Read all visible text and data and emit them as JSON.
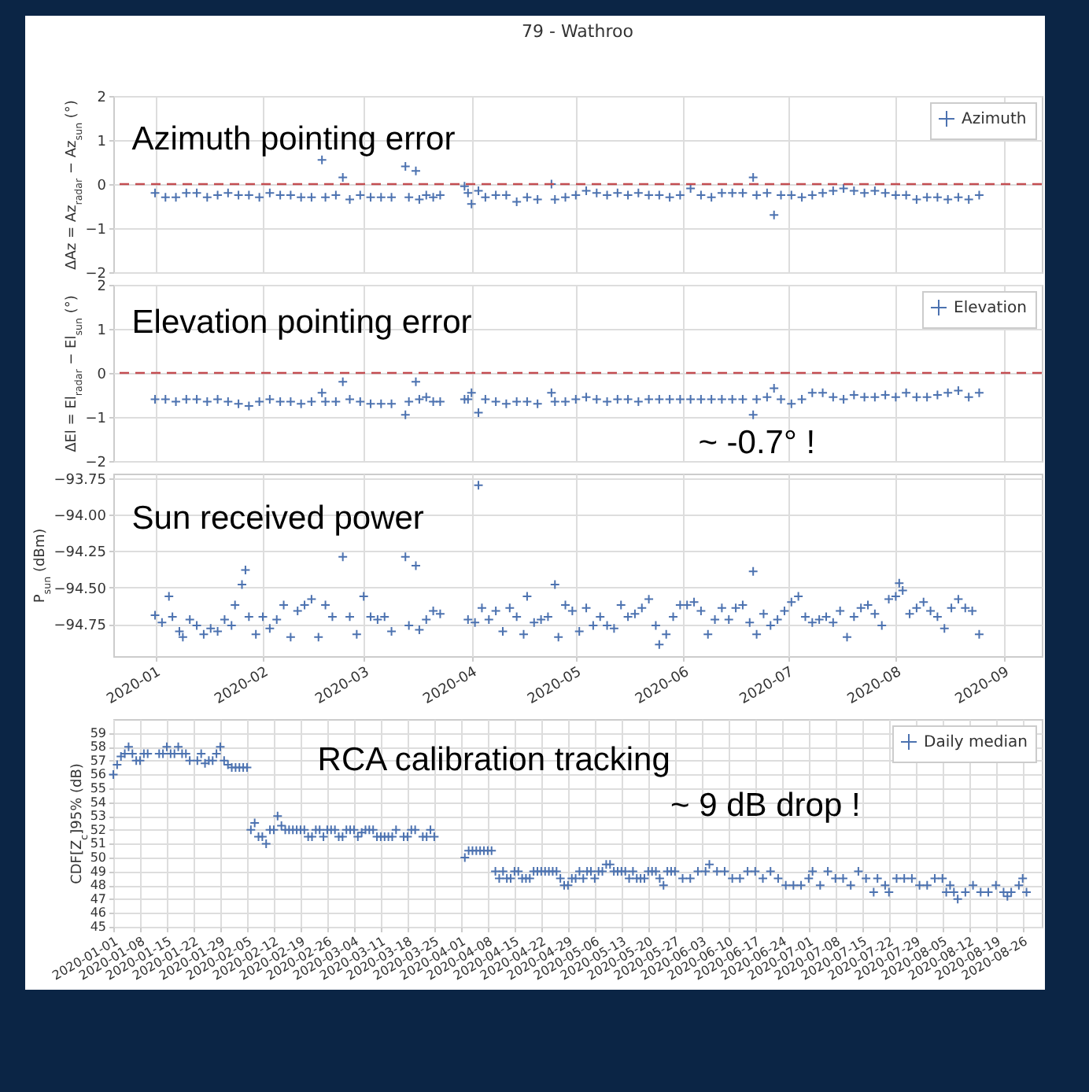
{
  "chart_data": [
    {
      "type": "scatter",
      "title": "79 - Wathroo",
      "ylabel": "ΔAz = Az$_{radar}$ − Az$_{sun}$ (°)",
      "annotations": [
        "Azimuth pointing error"
      ],
      "marker": "cross",
      "grid": true,
      "legend": "top right",
      "tick_labels": "y",
      "xlim": [
        "2019-12-20",
        "2020-09-12"
      ],
      "xticks": [
        "2020-01",
        "2020-02",
        "2020-03",
        "2020-04",
        "2020-05",
        "2020-06",
        "2020-07",
        "2020-08",
        "2020-09"
      ],
      "ylim": [
        -2,
        2
      ],
      "yticks": [
        -2,
        -1,
        0,
        1,
        2
      ],
      "ref_lines": [
        {
          "axis": "y",
          "value": 0,
          "color": "#c44e52",
          "line_style": "dashed"
        }
      ],
      "x": [
        "2020-01-01",
        "2020-01-04",
        "2020-01-07",
        "2020-01-10",
        "2020-01-13",
        "2020-01-16",
        "2020-01-19",
        "2020-01-22",
        "2020-01-25",
        "2020-01-28",
        "2020-01-31",
        "2020-02-03",
        "2020-02-06",
        "2020-02-09",
        "2020-02-12",
        "2020-02-15",
        "2020-02-18",
        "2020-02-19",
        "2020-02-22",
        "2020-02-24",
        "2020-02-26",
        "2020-02-29",
        "2020-03-03",
        "2020-03-06",
        "2020-03-09",
        "2020-03-13",
        "2020-03-14",
        "2020-03-16",
        "2020-03-17",
        "2020-03-19",
        "2020-03-21",
        "2020-03-23",
        "2020-03-30",
        "2020-03-31",
        "2020-04-01",
        "2020-04-03",
        "2020-04-05",
        "2020-04-08",
        "2020-04-11",
        "2020-04-14",
        "2020-04-17",
        "2020-04-20",
        "2020-04-24",
        "2020-04-25",
        "2020-04-28",
        "2020-05-01",
        "2020-05-04",
        "2020-05-07",
        "2020-05-10",
        "2020-05-13",
        "2020-05-16",
        "2020-05-19",
        "2020-05-22",
        "2020-05-25",
        "2020-05-28",
        "2020-05-31",
        "2020-06-03",
        "2020-06-06",
        "2020-06-09",
        "2020-06-12",
        "2020-06-15",
        "2020-06-18",
        "2020-06-21",
        "2020-06-22",
        "2020-06-25",
        "2020-06-27",
        "2020-06-29",
        "2020-07-02",
        "2020-07-05",
        "2020-07-08",
        "2020-07-11",
        "2020-07-14",
        "2020-07-17",
        "2020-07-20",
        "2020-07-23",
        "2020-07-26",
        "2020-07-29",
        "2020-08-01",
        "2020-08-04",
        "2020-08-07",
        "2020-08-10",
        "2020-08-13",
        "2020-08-16",
        "2020-08-19",
        "2020-08-22",
        "2020-08-25"
      ],
      "series": [
        {
          "name": "Azimuth",
          "color": "#4c72b0",
          "values": [
            -0.2,
            -0.3,
            -0.3,
            -0.2,
            -0.2,
            -0.3,
            -0.25,
            -0.2,
            -0.25,
            -0.25,
            -0.3,
            -0.2,
            -0.25,
            -0.25,
            -0.3,
            -0.3,
            0.55,
            -0.3,
            -0.25,
            0.15,
            -0.35,
            -0.25,
            -0.3,
            -0.3,
            -0.3,
            0.4,
            -0.3,
            0.3,
            -0.35,
            -0.25,
            -0.3,
            -0.25,
            -0.05,
            -0.2,
            -0.45,
            -0.15,
            -0.3,
            -0.25,
            -0.25,
            -0.4,
            -0.3,
            -0.35,
            0.0,
            -0.35,
            -0.3,
            -0.25,
            -0.15,
            -0.2,
            -0.25,
            -0.2,
            -0.25,
            -0.2,
            -0.25,
            -0.25,
            -0.3,
            -0.25,
            -0.1,
            -0.25,
            -0.3,
            -0.2,
            -0.2,
            -0.2,
            0.15,
            -0.25,
            -0.2,
            -0.7,
            -0.25,
            -0.25,
            -0.3,
            -0.25,
            -0.2,
            -0.15,
            -0.1,
            -0.15,
            -0.2,
            -0.15,
            -0.2,
            -0.25,
            -0.25,
            -0.35,
            -0.3,
            -0.3,
            -0.35,
            -0.3,
            -0.35,
            -0.25
          ]
        }
      ]
    },
    {
      "type": "scatter",
      "ylabel": "ΔEl = El$_{radar}$ − El$_{sun}$ (°)",
      "annotations": [
        "Elevation pointing error",
        "~ -0.7° !"
      ],
      "marker": "cross",
      "grid": true,
      "legend": "top right",
      "tick_labels": "y",
      "xlim": [
        "2019-12-20",
        "2020-09-12"
      ],
      "xticks": [
        "2020-01",
        "2020-02",
        "2020-03",
        "2020-04",
        "2020-05",
        "2020-06",
        "2020-07",
        "2020-08",
        "2020-09"
      ],
      "ylim": [
        -2,
        2
      ],
      "yticks": [
        -2,
        -1,
        0,
        1,
        2
      ],
      "ref_lines": [
        {
          "axis": "y",
          "value": 0,
          "color": "#c44e52",
          "line_style": "dashed"
        }
      ],
      "x": [
        "2020-01-01",
        "2020-01-04",
        "2020-01-07",
        "2020-01-10",
        "2020-01-13",
        "2020-01-16",
        "2020-01-19",
        "2020-01-22",
        "2020-01-25",
        "2020-01-28",
        "2020-01-31",
        "2020-02-03",
        "2020-02-06",
        "2020-02-09",
        "2020-02-12",
        "2020-02-15",
        "2020-02-18",
        "2020-02-19",
        "2020-02-22",
        "2020-02-24",
        "2020-02-26",
        "2020-02-29",
        "2020-03-03",
        "2020-03-06",
        "2020-03-09",
        "2020-03-13",
        "2020-03-14",
        "2020-03-16",
        "2020-03-17",
        "2020-03-19",
        "2020-03-21",
        "2020-03-23",
        "2020-03-30",
        "2020-03-31",
        "2020-04-01",
        "2020-04-03",
        "2020-04-05",
        "2020-04-08",
        "2020-04-11",
        "2020-04-14",
        "2020-04-17",
        "2020-04-20",
        "2020-04-24",
        "2020-04-25",
        "2020-04-28",
        "2020-05-01",
        "2020-05-04",
        "2020-05-07",
        "2020-05-10",
        "2020-05-13",
        "2020-05-16",
        "2020-05-19",
        "2020-05-22",
        "2020-05-25",
        "2020-05-28",
        "2020-05-31",
        "2020-06-03",
        "2020-06-06",
        "2020-06-09",
        "2020-06-12",
        "2020-06-15",
        "2020-06-18",
        "2020-06-21",
        "2020-06-22",
        "2020-06-25",
        "2020-06-27",
        "2020-06-29",
        "2020-07-02",
        "2020-07-05",
        "2020-07-08",
        "2020-07-11",
        "2020-07-14",
        "2020-07-17",
        "2020-07-20",
        "2020-07-23",
        "2020-07-26",
        "2020-07-29",
        "2020-08-01",
        "2020-08-04",
        "2020-08-07",
        "2020-08-10",
        "2020-08-13",
        "2020-08-16",
        "2020-08-19",
        "2020-08-22",
        "2020-08-25"
      ],
      "series": [
        {
          "name": "Elevation",
          "color": "#4c72b0",
          "values": [
            -0.6,
            -0.6,
            -0.65,
            -0.6,
            -0.6,
            -0.65,
            -0.6,
            -0.65,
            -0.7,
            -0.75,
            -0.65,
            -0.6,
            -0.65,
            -0.65,
            -0.7,
            -0.65,
            -0.45,
            -0.65,
            -0.65,
            -0.2,
            -0.6,
            -0.65,
            -0.7,
            -0.7,
            -0.7,
            -0.95,
            -0.65,
            -0.2,
            -0.6,
            -0.55,
            -0.65,
            -0.65,
            -0.6,
            -0.6,
            -0.45,
            -0.9,
            -0.6,
            -0.65,
            -0.7,
            -0.65,
            -0.65,
            -0.7,
            -0.45,
            -0.65,
            -0.65,
            -0.6,
            -0.55,
            -0.6,
            -0.65,
            -0.6,
            -0.6,
            -0.65,
            -0.6,
            -0.6,
            -0.6,
            -0.6,
            -0.6,
            -0.6,
            -0.6,
            -0.6,
            -0.6,
            -0.6,
            -0.95,
            -0.6,
            -0.55,
            -0.35,
            -0.6,
            -0.7,
            -0.6,
            -0.45,
            -0.45,
            -0.55,
            -0.6,
            -0.5,
            -0.55,
            -0.55,
            -0.5,
            -0.55,
            -0.45,
            -0.55,
            -0.55,
            -0.5,
            -0.45,
            -0.4,
            -0.55,
            -0.45
          ]
        }
      ]
    },
    {
      "type": "scatter",
      "ylabel": "P$_{sun}$ (dBm)",
      "annotations": [
        "Sun received power"
      ],
      "marker": "cross",
      "grid": true,
      "xlim": [
        "2019-12-20",
        "2020-09-12"
      ],
      "xticks": [
        "2020-01",
        "2020-02",
        "2020-03",
        "2020-04",
        "2020-05",
        "2020-06",
        "2020-07",
        "2020-08",
        "2020-09"
      ],
      "ylim": [
        -94.97,
        -93.72
      ],
      "yticks": [
        -93.75,
        {
          "value": -94,
          "label": "−94.00"
        },
        -94.25,
        {
          "value": -94.5,
          "label": "−94.50"
        },
        -94.75
      ],
      "x": [
        "2020-01-01",
        "2020-01-03",
        "2020-01-05",
        "2020-01-06",
        "2020-01-08",
        "2020-01-09",
        "2020-01-11",
        "2020-01-13",
        "2020-01-15",
        "2020-01-17",
        "2020-01-19",
        "2020-01-21",
        "2020-01-23",
        "2020-01-24",
        "2020-01-26",
        "2020-01-27",
        "2020-01-28",
        "2020-01-30",
        "2020-02-01",
        "2020-02-03",
        "2020-02-05",
        "2020-02-07",
        "2020-02-09",
        "2020-02-11",
        "2020-02-13",
        "2020-02-15",
        "2020-02-17",
        "2020-02-19",
        "2020-02-21",
        "2020-02-24",
        "2020-02-26",
        "2020-02-28",
        "2020-03-01",
        "2020-03-03",
        "2020-03-05",
        "2020-03-07",
        "2020-03-09",
        "2020-03-13",
        "2020-03-14",
        "2020-03-16",
        "2020-03-17",
        "2020-03-19",
        "2020-03-21",
        "2020-03-23",
        "2020-03-31",
        "2020-04-02",
        "2020-04-03",
        "2020-04-04",
        "2020-04-06",
        "2020-04-08",
        "2020-04-10",
        "2020-04-12",
        "2020-04-14",
        "2020-04-16",
        "2020-04-17",
        "2020-04-19",
        "2020-04-21",
        "2020-04-23",
        "2020-04-25",
        "2020-04-26",
        "2020-04-28",
        "2020-04-30",
        "2020-05-02",
        "2020-05-04",
        "2020-05-06",
        "2020-05-08",
        "2020-05-10",
        "2020-05-12",
        "2020-05-14",
        "2020-05-16",
        "2020-05-18",
        "2020-05-20",
        "2020-05-22",
        "2020-05-24",
        "2020-05-25",
        "2020-05-27",
        "2020-05-29",
        "2020-05-31",
        "2020-06-02",
        "2020-06-04",
        "2020-06-06",
        "2020-06-08",
        "2020-06-10",
        "2020-06-12",
        "2020-06-14",
        "2020-06-16",
        "2020-06-18",
        "2020-06-20",
        "2020-06-21",
        "2020-06-22",
        "2020-06-24",
        "2020-06-26",
        "2020-06-28",
        "2020-06-30",
        "2020-07-02",
        "2020-07-04",
        "2020-07-06",
        "2020-07-08",
        "2020-07-10",
        "2020-07-12",
        "2020-07-14",
        "2020-07-16",
        "2020-07-18",
        "2020-07-20",
        "2020-07-22",
        "2020-07-24",
        "2020-07-26",
        "2020-07-28",
        "2020-07-30",
        "2020-08-01",
        "2020-08-02",
        "2020-08-03",
        "2020-08-05",
        "2020-08-07",
        "2020-08-09",
        "2020-08-11",
        "2020-08-13",
        "2020-08-15",
        "2020-08-17",
        "2020-08-19",
        "2020-08-21",
        "2020-08-23",
        "2020-08-25"
      ],
      "series": [
        {
          "color": "#4c72b0",
          "values": [
            -94.69,
            -94.74,
            -94.56,
            -94.7,
            -94.8,
            -94.84,
            -94.72,
            -94.76,
            -94.82,
            -94.78,
            -94.8,
            -94.72,
            -94.76,
            -94.62,
            -94.48,
            -94.38,
            -94.7,
            -94.82,
            -94.7,
            -94.78,
            -94.72,
            -94.62,
            -94.84,
            -94.66,
            -94.62,
            -94.58,
            -94.84,
            -94.62,
            -94.7,
            -94.29,
            -94.7,
            -94.82,
            -94.56,
            -94.7,
            -94.72,
            -94.7,
            -94.8,
            -94.29,
            -94.76,
            -94.35,
            -94.79,
            -94.72,
            -94.66,
            -94.68,
            -94.72,
            -94.74,
            -93.8,
            -94.64,
            -94.72,
            -94.66,
            -94.8,
            -94.64,
            -94.7,
            -94.82,
            -94.56,
            -94.74,
            -94.72,
            -94.7,
            -94.48,
            -94.84,
            -94.62,
            -94.66,
            -94.8,
            -94.64,
            -94.76,
            -94.7,
            -94.76,
            -94.78,
            -94.62,
            -94.7,
            -94.68,
            -94.64,
            -94.58,
            -94.76,
            -94.89,
            -94.82,
            -94.7,
            -94.62,
            -94.62,
            -94.6,
            -94.66,
            -94.82,
            -94.72,
            -94.64,
            -94.72,
            -94.64,
            -94.62,
            -94.74,
            -94.39,
            -94.82,
            -94.68,
            -94.76,
            -94.72,
            -94.66,
            -94.6,
            -94.56,
            -94.7,
            -94.74,
            -94.72,
            -94.7,
            -94.74,
            -94.66,
            -94.84,
            -94.7,
            -94.64,
            -94.62,
            -94.68,
            -94.76,
            -94.58,
            -94.56,
            -94.47,
            -94.52,
            -94.68,
            -94.64,
            -94.6,
            -94.66,
            -94.7,
            -94.78,
            -94.64,
            -94.58,
            -94.64,
            -94.66,
            -94.82
          ]
        }
      ]
    },
    {
      "type": "scatter",
      "ylabel": "CDF[Z$_{c}$]95% (dB)",
      "annotations": [
        "RCA calibration tracking",
        "~ 9 dB drop !"
      ],
      "marker": "cross",
      "grid": true,
      "legend": "top right",
      "xlim": [
        "2020-01-01",
        "2020-08-31"
      ],
      "xticks": [
        "2020-01-01",
        "2020-01-08",
        "2020-01-15",
        "2020-01-22",
        "2020-01-29",
        "2020-02-05",
        "2020-02-12",
        "2020-02-19",
        "2020-02-26",
        "2020-03-04",
        "2020-03-11",
        "2020-03-18",
        "2020-03-25",
        "2020-04-01",
        "2020-04-08",
        "2020-04-15",
        "2020-04-22",
        "2020-04-29",
        "2020-05-06",
        "2020-05-13",
        "2020-05-20",
        "2020-05-27",
        "2020-06-03",
        "2020-06-10",
        "2020-06-17",
        "2020-06-24",
        "2020-07-01",
        "2020-07-08",
        "2020-07-15",
        "2020-07-22",
        "2020-07-29",
        "2020-08-05",
        "2020-08-12",
        "2020-08-19",
        "2020-08-26"
      ],
      "ylim": [
        45,
        60
      ],
      "yticks": [
        45,
        46,
        47,
        48,
        49,
        50,
        51,
        52,
        53,
        54,
        55,
        56,
        57,
        58,
        59
      ],
      "x": [
        "2020-01-01",
        "2020-01-02",
        "2020-01-03",
        "2020-01-04",
        "2020-01-05",
        "2020-01-06",
        "2020-01-07",
        "2020-01-08",
        "2020-01-09",
        "2020-01-10",
        "2020-01-13",
        "2020-01-14",
        "2020-01-15",
        "2020-01-16",
        "2020-01-17",
        "2020-01-18",
        "2020-01-19",
        "2020-01-20",
        "2020-01-21",
        "2020-01-23",
        "2020-01-24",
        "2020-01-25",
        "2020-01-26",
        "2020-01-27",
        "2020-01-28",
        "2020-01-29",
        "2020-01-30",
        "2020-01-31",
        "2020-02-01",
        "2020-02-02",
        "2020-02-03",
        "2020-02-04",
        "2020-02-05",
        "2020-02-06",
        "2020-02-07",
        "2020-02-08",
        "2020-02-09",
        "2020-02-10",
        "2020-02-11",
        "2020-02-12",
        "2020-02-13",
        "2020-02-14",
        "2020-02-15",
        "2020-02-16",
        "2020-02-17",
        "2020-02-18",
        "2020-02-19",
        "2020-02-20",
        "2020-02-21",
        "2020-02-22",
        "2020-02-23",
        "2020-02-24",
        "2020-02-25",
        "2020-02-26",
        "2020-02-27",
        "2020-02-28",
        "2020-02-29",
        "2020-03-01",
        "2020-03-02",
        "2020-03-03",
        "2020-03-04",
        "2020-03-05",
        "2020-03-06",
        "2020-03-07",
        "2020-03-08",
        "2020-03-09",
        "2020-03-10",
        "2020-03-11",
        "2020-03-12",
        "2020-03-13",
        "2020-03-14",
        "2020-03-15",
        "2020-03-17",
        "2020-03-18",
        "2020-03-19",
        "2020-03-20",
        "2020-03-22",
        "2020-03-23",
        "2020-03-24",
        "2020-03-25",
        "2020-04-02",
        "2020-04-03",
        "2020-04-04",
        "2020-04-05",
        "2020-04-06",
        "2020-04-07",
        "2020-04-08",
        "2020-04-09",
        "2020-04-10",
        "2020-04-11",
        "2020-04-12",
        "2020-04-13",
        "2020-04-14",
        "2020-04-15",
        "2020-04-16",
        "2020-04-17",
        "2020-04-18",
        "2020-04-19",
        "2020-04-20",
        "2020-04-21",
        "2020-04-22",
        "2020-04-23",
        "2020-04-24",
        "2020-04-25",
        "2020-04-26",
        "2020-04-27",
        "2020-04-28",
        "2020-04-29",
        "2020-04-30",
        "2020-05-01",
        "2020-05-02",
        "2020-05-03",
        "2020-05-04",
        "2020-05-05",
        "2020-05-06",
        "2020-05-07",
        "2020-05-08",
        "2020-05-09",
        "2020-05-10",
        "2020-05-11",
        "2020-05-12",
        "2020-05-13",
        "2020-05-14",
        "2020-05-15",
        "2020-05-16",
        "2020-05-17",
        "2020-05-18",
        "2020-05-19",
        "2020-05-20",
        "2020-05-21",
        "2020-05-22",
        "2020-05-23",
        "2020-05-24",
        "2020-05-25",
        "2020-05-26",
        "2020-05-27",
        "2020-05-29",
        "2020-05-31",
        "2020-06-02",
        "2020-06-04",
        "2020-06-05",
        "2020-06-07",
        "2020-06-09",
        "2020-06-11",
        "2020-06-13",
        "2020-06-15",
        "2020-06-17",
        "2020-06-19",
        "2020-06-21",
        "2020-06-23",
        "2020-06-25",
        "2020-06-27",
        "2020-06-29",
        "2020-07-01",
        "2020-07-02",
        "2020-07-04",
        "2020-07-06",
        "2020-07-08",
        "2020-07-10",
        "2020-07-12",
        "2020-07-14",
        "2020-07-16",
        "2020-07-18",
        "2020-07-19",
        "2020-07-21",
        "2020-07-22",
        "2020-07-24",
        "2020-07-26",
        "2020-07-28",
        "2020-07-30",
        "2020-08-01",
        "2020-08-03",
        "2020-08-05",
        "2020-08-06",
        "2020-08-07",
        "2020-08-08",
        "2020-08-09",
        "2020-08-11",
        "2020-08-13",
        "2020-08-15",
        "2020-08-17",
        "2020-08-19",
        "2020-08-21",
        "2020-08-22",
        "2020-08-23",
        "2020-08-25",
        "2020-08-26",
        "2020-08-27"
      ],
      "series": [
        {
          "name": "Daily median",
          "color": "#4c72b0",
          "values": [
            56.0,
            56.7,
            57.3,
            57.5,
            58.0,
            57.5,
            57.0,
            57.0,
            57.5,
            57.5,
            57.5,
            57.5,
            58.0,
            57.5,
            57.5,
            58.0,
            57.5,
            57.5,
            57.0,
            57.0,
            57.5,
            56.8,
            57.0,
            57.0,
            57.5,
            58.0,
            57.0,
            56.7,
            56.5,
            56.5,
            56.5,
            56.5,
            56.5,
            52.0,
            52.5,
            51.5,
            51.5,
            51.0,
            52.0,
            52.0,
            53.0,
            52.3,
            52.0,
            52.0,
            52.0,
            52.0,
            52.0,
            52.0,
            51.5,
            51.5,
            52.0,
            52.0,
            51.5,
            52.0,
            52.0,
            52.0,
            51.5,
            51.5,
            52.0,
            52.0,
            52.0,
            51.5,
            51.8,
            52.0,
            52.0,
            52.0,
            51.5,
            51.5,
            51.5,
            51.5,
            51.5,
            52.0,
            51.5,
            51.5,
            52.0,
            52.0,
            51.5,
            51.5,
            52.0,
            51.5,
            50.0,
            50.5,
            50.5,
            50.5,
            50.5,
            50.5,
            50.5,
            50.5,
            49.0,
            48.5,
            49.0,
            48.5,
            48.5,
            49.0,
            49.0,
            48.5,
            48.5,
            48.5,
            49.0,
            49.0,
            49.0,
            49.0,
            49.0,
            49.0,
            49.0,
            48.5,
            48.0,
            48.0,
            48.5,
            48.5,
            49.0,
            48.5,
            49.0,
            49.0,
            48.5,
            49.0,
            49.0,
            49.5,
            49.5,
            49.0,
            49.0,
            49.0,
            49.0,
            48.5,
            49.0,
            48.5,
            48.5,
            48.5,
            49.0,
            49.0,
            49.0,
            48.5,
            48.0,
            49.0,
            49.0,
            49.0,
            48.5,
            48.5,
            49.0,
            49.0,
            49.5,
            49.0,
            49.0,
            48.5,
            48.5,
            49.0,
            49.0,
            48.5,
            49.0,
            48.5,
            48.0,
            48.0,
            48.0,
            48.5,
            49.0,
            48.0,
            49.0,
            48.5,
            48.5,
            48.0,
            49.0,
            48.5,
            47.5,
            48.5,
            48.0,
            47.5,
            48.5,
            48.5,
            48.5,
            48.0,
            48.0,
            48.5,
            48.5,
            47.5,
            48.0,
            47.5,
            47.0,
            47.5,
            48.0,
            47.5,
            47.5,
            48.0,
            47.5,
            47.2,
            47.5,
            48.0,
            48.5,
            47.5
          ]
        }
      ]
    }
  ]
}
